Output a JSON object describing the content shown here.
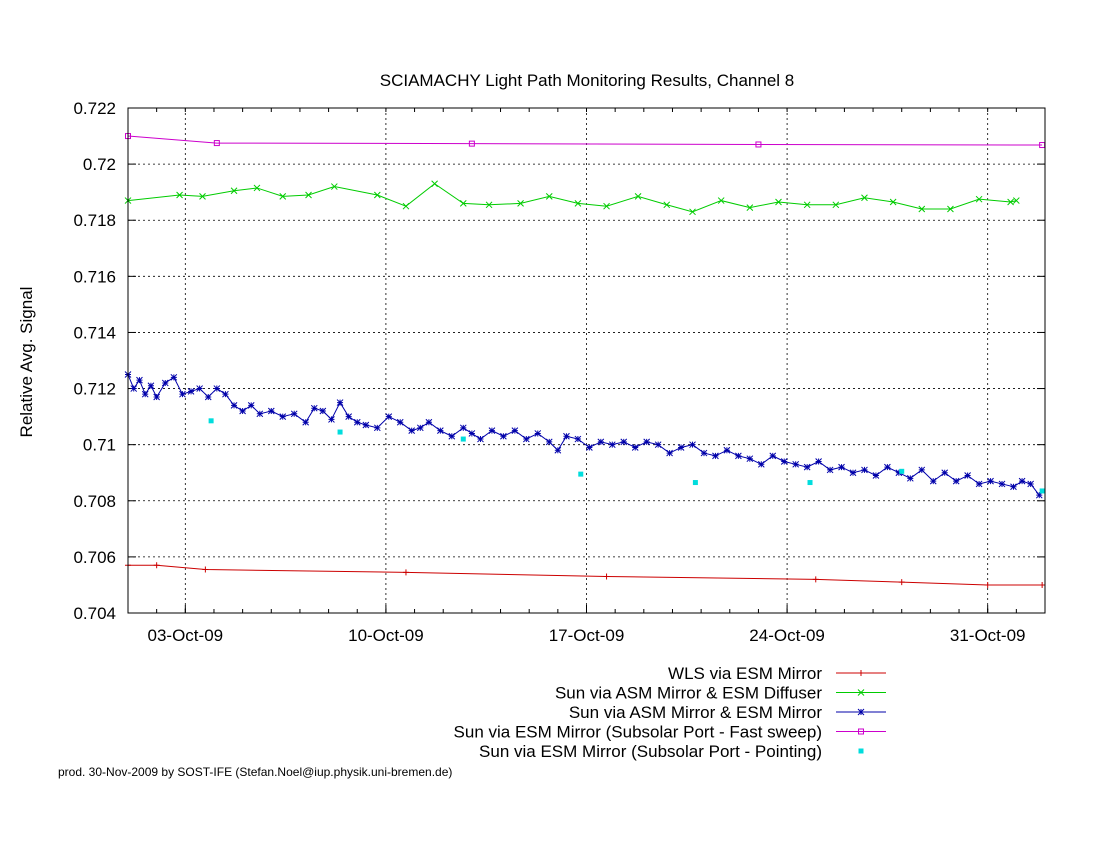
{
  "chart_data": {
    "type": "line",
    "title": "SCIAMACHY Light Path Monitoring Results, Channel 8",
    "ylabel": "Relative Avg. Signal",
    "xlabel": "",
    "x_axis_type": "date",
    "xlim": [
      "2009-10-01",
      "2009-11-02"
    ],
    "ylim": [
      0.704,
      0.722
    ],
    "yticks": [
      "0.704",
      "0.706",
      "0.708",
      "0.71",
      "0.712",
      "0.714",
      "0.716",
      "0.718",
      "0.72",
      "0.722"
    ],
    "xticks": [
      {
        "date": "2009-10-03",
        "label": "03-Oct-09"
      },
      {
        "date": "2009-10-10",
        "label": "10-Oct-09"
      },
      {
        "date": "2009-10-17",
        "label": "17-Oct-09"
      },
      {
        "date": "2009-10-24",
        "label": "24-Oct-09"
      },
      {
        "date": "2009-10-31",
        "label": "31-Oct-09"
      }
    ],
    "grid": true,
    "legend_position": "bottom-right",
    "series": [
      {
        "name": "WLS via ESM Mirror",
        "color": "#cc0000",
        "marker": "plus",
        "line": true,
        "points": [
          [
            "2009-10-01",
            0.7057
          ],
          [
            "2009-10-02",
            0.7057
          ],
          [
            "2009-10-03.7",
            0.70555
          ],
          [
            "2009-10-10.7",
            0.70545
          ],
          [
            "2009-10-17.7",
            0.7053
          ],
          [
            "2009-10-25",
            0.7052
          ],
          [
            "2009-10-28",
            0.7051
          ],
          [
            "2009-10-31",
            0.705
          ],
          [
            "2009-11-01.9",
            0.705
          ]
        ]
      },
      {
        "name": "Sun via ASM Mirror & ESM Diffuser",
        "color": "#00cc00",
        "marker": "x",
        "line": true,
        "points": [
          [
            "2009-10-01",
            0.7187
          ],
          [
            "2009-10-02.8",
            0.7189
          ],
          [
            "2009-10-03.6",
            0.71885
          ],
          [
            "2009-10-04.7",
            0.71905
          ],
          [
            "2009-10-05.5",
            0.71915
          ],
          [
            "2009-10-06.4",
            0.71885
          ],
          [
            "2009-10-07.3",
            0.7189
          ],
          [
            "2009-10-08.2",
            0.7192
          ],
          [
            "2009-10-09.7",
            0.7189
          ],
          [
            "2009-10-10.7",
            0.7185
          ],
          [
            "2009-10-11.7",
            0.7193
          ],
          [
            "2009-10-12.7",
            0.7186
          ],
          [
            "2009-10-13.6",
            0.71855
          ],
          [
            "2009-10-14.7",
            0.7186
          ],
          [
            "2009-10-15.7",
            0.71885
          ],
          [
            "2009-10-16.7",
            0.7186
          ],
          [
            "2009-10-17.7",
            0.7185
          ],
          [
            "2009-10-18.8",
            0.71885
          ],
          [
            "2009-10-19.8",
            0.71855
          ],
          [
            "2009-10-20.7",
            0.7183
          ],
          [
            "2009-10-21.7",
            0.7187
          ],
          [
            "2009-10-22.7",
            0.71845
          ],
          [
            "2009-10-23.7",
            0.71865
          ],
          [
            "2009-10-24.7",
            0.71855
          ],
          [
            "2009-10-25.7",
            0.71855
          ],
          [
            "2009-10-26.7",
            0.7188
          ],
          [
            "2009-10-27.7",
            0.71865
          ],
          [
            "2009-10-28.7",
            0.7184
          ],
          [
            "2009-10-29.7",
            0.7184
          ],
          [
            "2009-10-30.7",
            0.71875
          ],
          [
            "2009-10-31.8",
            0.71865
          ],
          [
            "2009-11-01",
            0.7187
          ]
        ]
      },
      {
        "name": "Sun via ASM Mirror & ESM Mirror",
        "color": "#0000aa",
        "marker": "star",
        "line": true,
        "points_note": "dense daily-orbit measurements; noisy downward trend",
        "points": [
          [
            "2009-10-01.0",
            0.7125
          ],
          [
            "2009-10-01.2",
            0.712
          ],
          [
            "2009-10-01.4",
            0.7123
          ],
          [
            "2009-10-01.6",
            0.7118
          ],
          [
            "2009-10-01.8",
            0.7121
          ],
          [
            "2009-10-02.0",
            0.7117
          ],
          [
            "2009-10-02.3",
            0.7122
          ],
          [
            "2009-10-02.6",
            0.7124
          ],
          [
            "2009-10-02.9",
            0.7118
          ],
          [
            "2009-10-03.2",
            0.7119
          ],
          [
            "2009-10-03.5",
            0.712
          ],
          [
            "2009-10-03.8",
            0.7117
          ],
          [
            "2009-10-04.1",
            0.712
          ],
          [
            "2009-10-04.4",
            0.7118
          ],
          [
            "2009-10-04.7",
            0.7114
          ],
          [
            "2009-10-05.0",
            0.7112
          ],
          [
            "2009-10-05.3",
            0.7114
          ],
          [
            "2009-10-05.6",
            0.7111
          ],
          [
            "2009-10-06.0",
            0.7112
          ],
          [
            "2009-10-06.4",
            0.711
          ],
          [
            "2009-10-06.8",
            0.7111
          ],
          [
            "2009-10-07.2",
            0.7108
          ],
          [
            "2009-10-07.5",
            0.7113
          ],
          [
            "2009-10-07.8",
            0.7112
          ],
          [
            "2009-10-08.1",
            0.7109
          ],
          [
            "2009-10-08.4",
            0.7115
          ],
          [
            "2009-10-08.7",
            0.711
          ],
          [
            "2009-10-09.0",
            0.7108
          ],
          [
            "2009-10-09.3",
            0.7107
          ],
          [
            "2009-10-09.7",
            0.7106
          ],
          [
            "2009-10-10.1",
            0.711
          ],
          [
            "2009-10-10.5",
            0.7108
          ],
          [
            "2009-10-10.9",
            0.7105
          ],
          [
            "2009-10-11.2",
            0.7106
          ],
          [
            "2009-10-11.5",
            0.7108
          ],
          [
            "2009-10-11.9",
            0.7105
          ],
          [
            "2009-10-12.3",
            0.7103
          ],
          [
            "2009-10-12.7",
            0.7106
          ],
          [
            "2009-10-13.0",
            0.7104
          ],
          [
            "2009-10-13.3",
            0.7102
          ],
          [
            "2009-10-13.7",
            0.7105
          ],
          [
            "2009-10-14.1",
            0.7103
          ],
          [
            "2009-10-14.5",
            0.7105
          ],
          [
            "2009-10-14.9",
            0.7102
          ],
          [
            "2009-10-15.3",
            0.7104
          ],
          [
            "2009-10-15.7",
            0.7101
          ],
          [
            "2009-10-16.0",
            0.7098
          ],
          [
            "2009-10-16.3",
            0.7103
          ],
          [
            "2009-10-16.7",
            0.7102
          ],
          [
            "2009-10-17.1",
            0.7099
          ],
          [
            "2009-10-17.5",
            0.7101
          ],
          [
            "2009-10-17.9",
            0.71
          ],
          [
            "2009-10-18.3",
            0.7101
          ],
          [
            "2009-10-18.7",
            0.7099
          ],
          [
            "2009-10-19.1",
            0.7101
          ],
          [
            "2009-10-19.5",
            0.71
          ],
          [
            "2009-10-19.9",
            0.7097
          ],
          [
            "2009-10-20.3",
            0.7099
          ],
          [
            "2009-10-20.7",
            0.71
          ],
          [
            "2009-10-21.1",
            0.7097
          ],
          [
            "2009-10-21.5",
            0.7096
          ],
          [
            "2009-10-21.9",
            0.7098
          ],
          [
            "2009-10-22.3",
            0.7096
          ],
          [
            "2009-10-22.7",
            0.7095
          ],
          [
            "2009-10-23.1",
            0.7093
          ],
          [
            "2009-10-23.5",
            0.7096
          ],
          [
            "2009-10-23.9",
            0.7094
          ],
          [
            "2009-10-24.3",
            0.7093
          ],
          [
            "2009-10-24.7",
            0.7092
          ],
          [
            "2009-10-25.1",
            0.7094
          ],
          [
            "2009-10-25.5",
            0.7091
          ],
          [
            "2009-10-25.9",
            0.7092
          ],
          [
            "2009-10-26.3",
            0.709
          ],
          [
            "2009-10-26.7",
            0.7091
          ],
          [
            "2009-10-27.1",
            0.7089
          ],
          [
            "2009-10-27.5",
            0.7092
          ],
          [
            "2009-10-27.9",
            0.709
          ],
          [
            "2009-10-28.3",
            0.7088
          ],
          [
            "2009-10-28.7",
            0.7091
          ],
          [
            "2009-10-29.1",
            0.7087
          ],
          [
            "2009-10-29.5",
            0.709
          ],
          [
            "2009-10-29.9",
            0.7087
          ],
          [
            "2009-10-30.3",
            0.7089
          ],
          [
            "2009-10-30.7",
            0.7086
          ],
          [
            "2009-10-31.1",
            0.7087
          ],
          [
            "2009-10-31.5",
            0.7086
          ],
          [
            "2009-10-31.9",
            0.7085
          ],
          [
            "2009-11-01.2",
            0.7087
          ],
          [
            "2009-11-01.5",
            0.7086
          ],
          [
            "2009-11-01.8",
            0.7082
          ]
        ]
      },
      {
        "name": "Sun via ESM Mirror (Subsolar Port - Fast sweep)",
        "color": "#cc00cc",
        "marker": "square",
        "line": true,
        "points": [
          [
            "2009-10-01.0",
            0.721
          ],
          [
            "2009-10-04.1",
            0.72075
          ],
          [
            "2009-10-13.0",
            0.72073
          ],
          [
            "2009-10-23.0",
            0.7207
          ],
          [
            "2009-11-01.9",
            0.72068
          ]
        ]
      },
      {
        "name": "Sun via ESM Mirror (Subsolar Port - Pointing)",
        "color": "#00dddd",
        "marker": "filled-square",
        "line": false,
        "points": [
          [
            "2009-10-03.9",
            0.71085
          ],
          [
            "2009-10-08.4",
            0.71045
          ],
          [
            "2009-10-12.7",
            0.7102
          ],
          [
            "2009-10-16.8",
            0.70895
          ],
          [
            "2009-10-20.8",
            0.70865
          ],
          [
            "2009-10-24.8",
            0.70865
          ],
          [
            "2009-10-28.0",
            0.70905
          ],
          [
            "2009-11-01.9",
            0.70835
          ]
        ]
      }
    ]
  },
  "footer": "prod. 30-Nov-2009 by SOST-IFE (Stefan.Noel@iup.physik.uni-bremen.de)"
}
